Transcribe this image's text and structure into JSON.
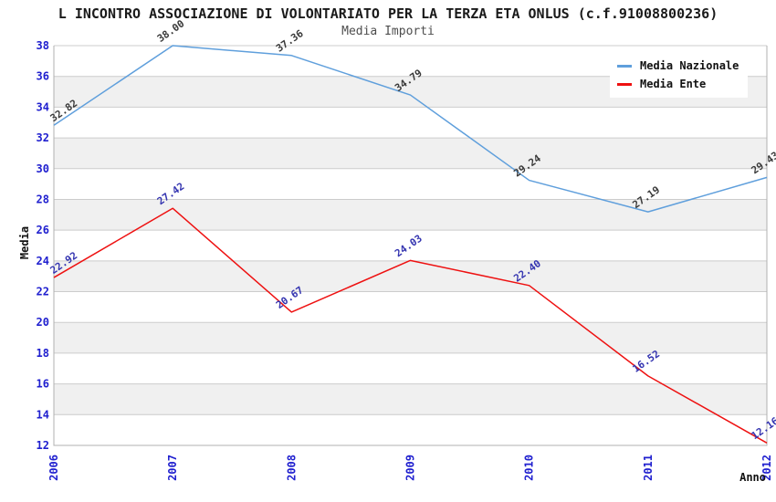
{
  "title": "L INCONTRO ASSOCIAZIONE DI VOLONTARIATO PER LA TERZA ETA ONLUS (c.f.91008800236)",
  "subtitle": "Media Importi",
  "chart_data": {
    "type": "line",
    "title": "L INCONTRO ASSOCIAZIONE DI VOLONTARIATO PER LA TERZA ETA ONLUS (c.f.91008800236)",
    "subtitle": "Media Importi",
    "categories": [
      "2006",
      "2007",
      "2008",
      "2009",
      "2010",
      "2011",
      "2012"
    ],
    "series": [
      {
        "name": "Media Nazionale",
        "color": "#5f9fdc",
        "label_color": "#3a3a3a",
        "values": [
          32.82,
          38.0,
          37.36,
          34.79,
          29.24,
          27.19,
          29.43
        ]
      },
      {
        "name": "Media Ente",
        "color": "#ee1111",
        "label_color": "#3434b0",
        "values": [
          22.92,
          27.42,
          20.67,
          24.03,
          22.4,
          16.52,
          12.16
        ]
      }
    ],
    "xlabel": "Anno",
    "ylabel": "Media",
    "ylim": [
      12,
      38
    ],
    "ytick_step": 2,
    "grid": true,
    "legend_position": "top-right",
    "value_label_decimals": 2,
    "colors": {
      "axis_tick_label": "#2020cf",
      "gridline": "#cccccc",
      "plot_border": "#b0b0b0",
      "band_even": "#ffffff",
      "band_odd": "#f0f0f0",
      "axis_title": "#111111"
    }
  }
}
